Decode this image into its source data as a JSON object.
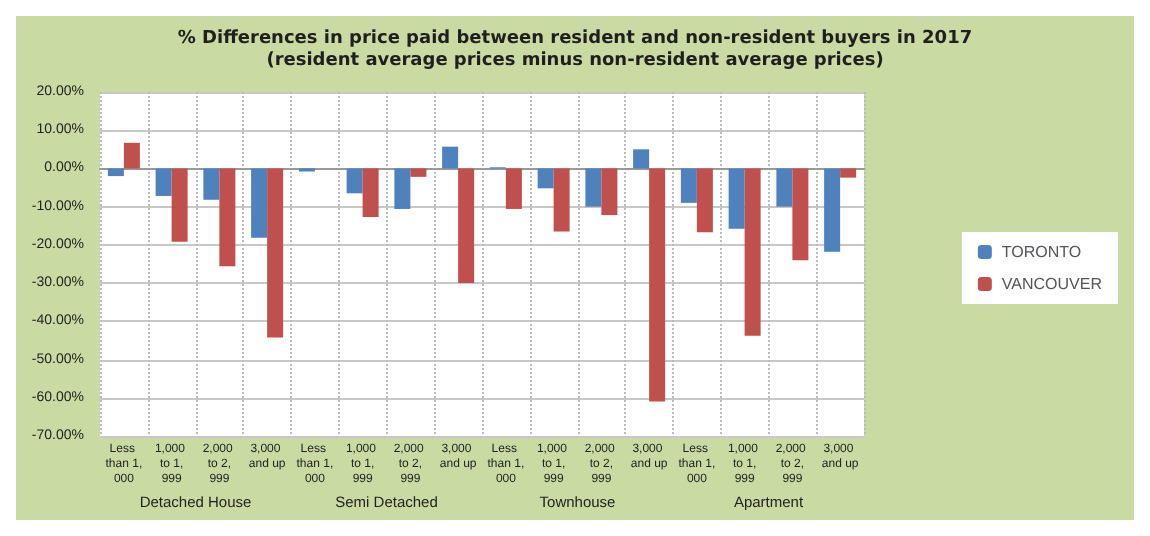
{
  "chart_data": {
    "type": "bar",
    "title": "% Differences in price paid between resident and non-resident buyers in 2017",
    "subtitle": "(resident average prices minus non-resident average prices)",
    "categories": [
      "Less than 1,000",
      "1,000 to 1,999",
      "2,000 to 2,999",
      "3,000 and up",
      "Less than 1,000",
      "1,000 to 1,999",
      "2,000 to 2,999",
      "3,000 and up",
      "Less than 1,000",
      "1,000 to 1,999",
      "2,000 to 2,999",
      "3,000 and up",
      "Less than 1,000",
      "1,000 to 1,999",
      "2,000 to 2,999",
      "3,000 and up"
    ],
    "series": [
      {
        "name": "TORONTO",
        "color": "#4f81bd",
        "values": [
          -2.0,
          -7.2,
          -8.2,
          -18.1,
          -0.8,
          -6.5,
          -10.6,
          5.7,
          0.3,
          -5.2,
          -10.0,
          5.0,
          -9.0,
          -15.8,
          -10.0,
          -21.8
        ]
      },
      {
        "name": "VANCOUVER",
        "color": "#c0504d",
        "values": [
          6.7,
          -19.2,
          -25.6,
          -44.2,
          0,
          -12.7,
          -2.2,
          -30.0,
          -10.6,
          -16.5,
          -12.2,
          -61.0,
          -16.7,
          -43.8,
          -24.0,
          -2.4
        ]
      }
    ],
    "annotations": [
      "Detached House",
      "Semi Detached",
      "Townhouse",
      "Apartment"
    ],
    "ylim": [
      -70,
      20
    ],
    "yticks": [
      {
        "value": -70,
        "label": "-70.00%"
      },
      {
        "value": -60,
        "label": "-60.00%"
      },
      {
        "value": -50,
        "label": "-50.00%"
      },
      {
        "value": -40,
        "label": "-40.00%"
      },
      {
        "value": -30,
        "label": "-30.00%"
      },
      {
        "value": -20,
        "label": "-20.00%"
      },
      {
        "value": -10,
        "label": "-10.00%"
      },
      {
        "value": 0,
        "label": "0.00%"
      },
      {
        "value": 10,
        "label": "10.00%"
      },
      {
        "value": 20,
        "label": "20.00%"
      }
    ],
    "grid": true,
    "legend": "right"
  }
}
